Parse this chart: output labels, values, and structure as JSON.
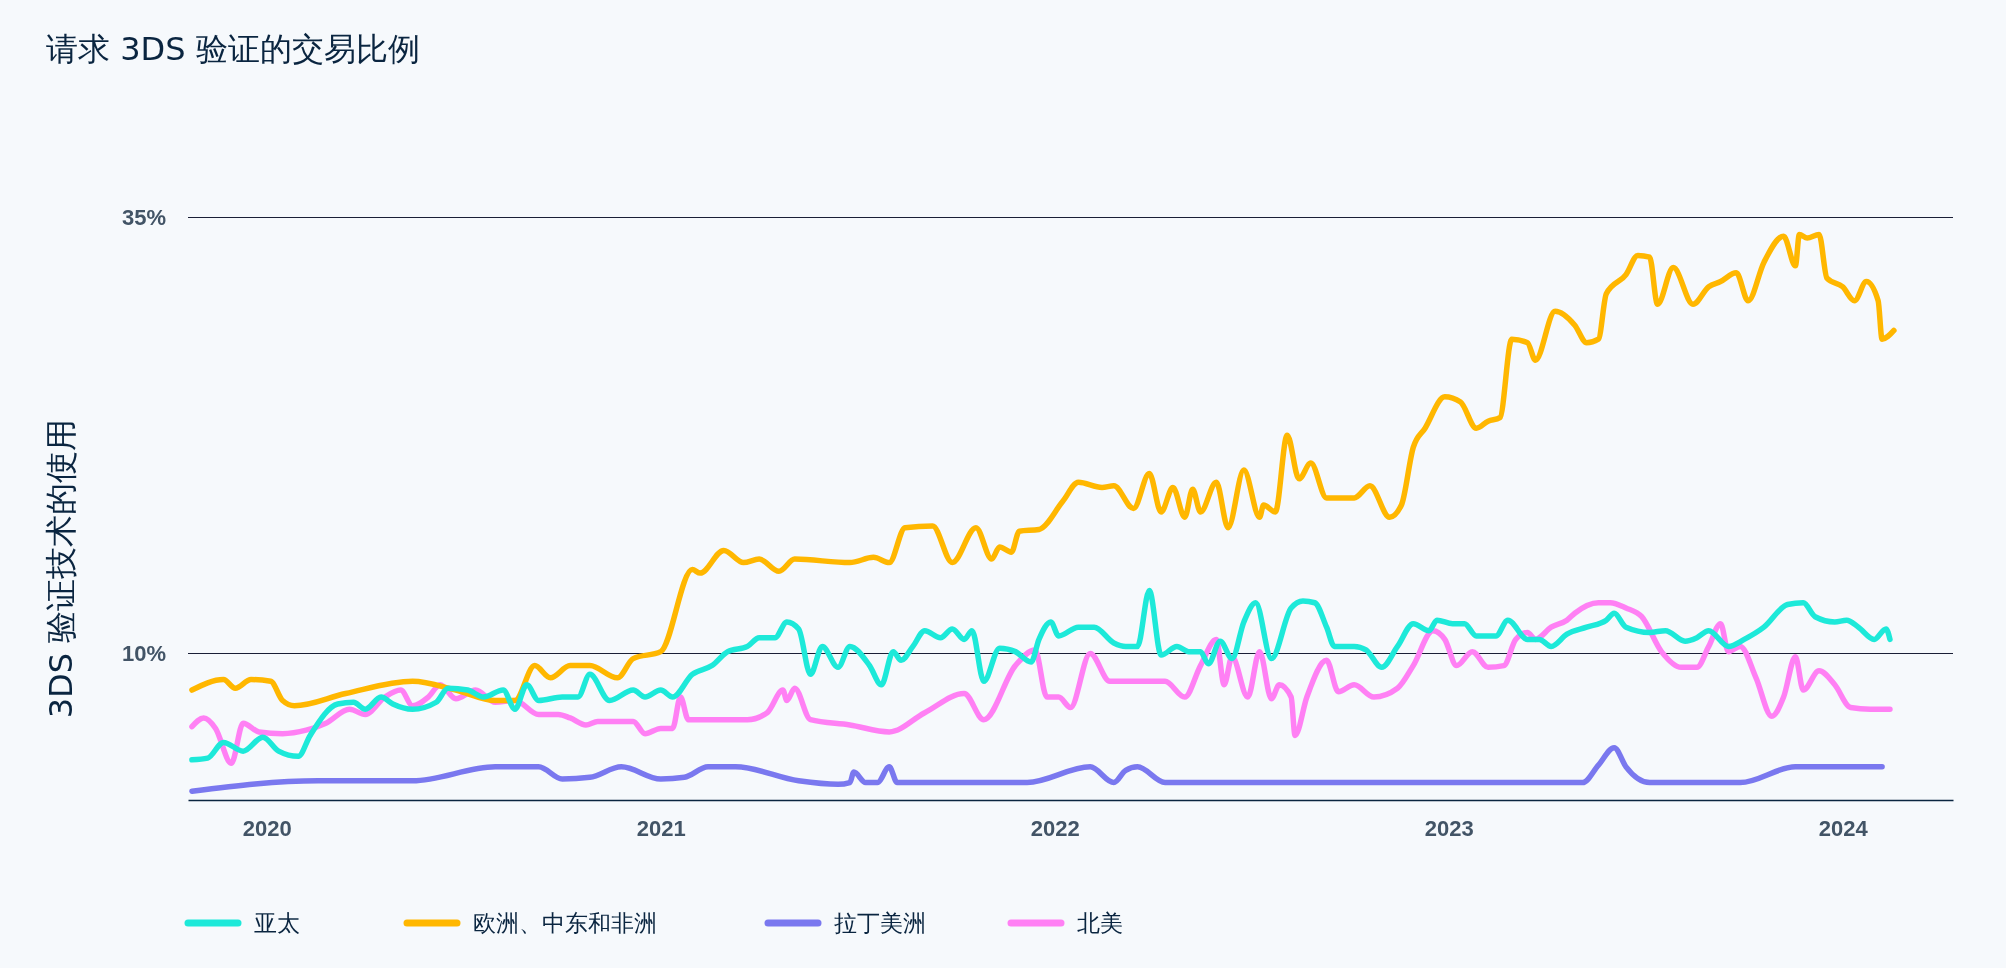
{
  "chart_data": {
    "type": "line",
    "title": "请求 3DS 验证的交易比例",
    "ylabel": "3DS 验证技术的使用",
    "xlim": [
      2019.8,
      2024.28
    ],
    "xticks": [
      2020,
      2021,
      2022,
      2023,
      2024
    ],
    "ylim": [
      1.6,
      35
    ],
    "yticks": [
      {
        "value": 10,
        "label": "10%"
      },
      {
        "value": 35,
        "label": "35%"
      }
    ],
    "grid": "y",
    "legend": "bottom left",
    "series": [
      {
        "name": "亚太",
        "color": "#1de9d9",
        "x": [
          2019.81,
          2019.85,
          2019.89,
          2019.94,
          2019.99,
          2020.03,
          2020.08,
          2020.11,
          2020.18,
          2020.22,
          2020.25,
          2020.29,
          2020.32,
          2020.37,
          2020.43,
          2020.46,
          2020.51,
          2020.55,
          2020.6,
          2020.63,
          2020.66,
          2020.69,
          2020.75,
          2020.79,
          2020.82,
          2020.87,
          2020.93,
          2020.96,
          2021.0,
          2021.03,
          2021.08,
          2021.13,
          2021.17,
          2021.22,
          2021.25,
          2021.29,
          2021.32,
          2021.35,
          2021.38,
          2021.41,
          2021.45,
          2021.48,
          2021.53,
          2021.56,
          2021.59,
          2021.61,
          2021.64,
          2021.67,
          2021.71,
          2021.74,
          2021.77,
          2021.79,
          2021.82,
          2021.86,
          2021.9,
          2021.94,
          2021.96,
          2021.99,
          2022.01,
          2022.06,
          2022.1,
          2022.15,
          2022.18,
          2022.21,
          2022.24,
          2022.27,
          2022.31,
          2022.34,
          2022.37,
          2022.39,
          2022.42,
          2022.45,
          2022.48,
          2022.51,
          2022.55,
          2022.6,
          2022.63,
          2022.66,
          2022.69,
          2022.71,
          2022.76,
          2022.79,
          2022.83,
          2022.87,
          2022.91,
          2022.95,
          2022.97,
          2023.01,
          2023.04,
          2023.07,
          2023.12,
          2023.15,
          2023.2,
          2023.23,
          2023.26,
          2023.3,
          2023.35,
          2023.4,
          2023.42,
          2023.45,
          2023.51,
          2023.55,
          2023.6,
          2023.63,
          2023.66,
          2023.71,
          2023.75,
          2023.8,
          2023.86,
          2023.9,
          2023.93,
          2023.98,
          2024.01,
          2024.04,
          2024.08,
          2024.11,
          2024.12
        ],
        "values": [
          3.9,
          4.0,
          4.9,
          4.4,
          5.2,
          4.4,
          4.1,
          5.3,
          7.1,
          7.2,
          6.8,
          7.5,
          7.1,
          6.8,
          7.2,
          8.0,
          7.9,
          7.5,
          7.9,
          6.8,
          8.2,
          7.3,
          7.5,
          7.5,
          8.8,
          7.3,
          7.9,
          7.5,
          7.9,
          7.5,
          8.8,
          9.3,
          10.1,
          10.4,
          10.9,
          10.9,
          11.8,
          11.4,
          8.8,
          10.4,
          9.2,
          10.4,
          9.3,
          8.2,
          10.1,
          9.6,
          10.4,
          11.3,
          10.9,
          11.4,
          10.8,
          11.3,
          8.4,
          10.3,
          10.1,
          9.5,
          10.8,
          11.8,
          11.0,
          11.5,
          11.5,
          10.6,
          10.4,
          10.4,
          13.6,
          9.9,
          10.4,
          10.1,
          10.1,
          9.4,
          10.7,
          9.7,
          11.8,
          12.9,
          9.7,
          12.6,
          13.0,
          12.9,
          11.5,
          10.4,
          10.4,
          10.2,
          9.2,
          10.4,
          11.7,
          11.3,
          11.9,
          11.7,
          11.7,
          11.0,
          11.0,
          11.9,
          10.8,
          10.8,
          10.4,
          11.1,
          11.5,
          11.9,
          12.3,
          11.5,
          11.2,
          11.3,
          10.7,
          10.9,
          11.3,
          10.4,
          10.8,
          11.5,
          12.8,
          12.9,
          12.1,
          11.8,
          11.9,
          11.5,
          10.8,
          11.4,
          10.8
        ]
      },
      {
        "name": "欧洲、中东和非洲",
        "color": "#ffb700",
        "x": [
          2019.81,
          2019.89,
          2019.92,
          2019.96,
          2020.01,
          2020.04,
          2020.07,
          2020.2,
          2020.37,
          2020.48,
          2020.58,
          2020.63,
          2020.68,
          2020.72,
          2020.77,
          2020.82,
          2020.89,
          2020.93,
          2021.0,
          2021.08,
          2021.1,
          2021.16,
          2021.21,
          2021.25,
          2021.3,
          2021.34,
          2021.48,
          2021.54,
          2021.58,
          2021.62,
          2021.69,
          2021.74,
          2021.8,
          2021.84,
          2021.86,
          2021.89,
          2021.91,
          2021.96,
          2022.02,
          2022.06,
          2022.12,
          2022.15,
          2022.2,
          2022.24,
          2022.27,
          2022.3,
          2022.33,
          2022.35,
          2022.37,
          2022.41,
          2022.44,
          2022.48,
          2022.52,
          2022.53,
          2022.56,
          2022.59,
          2022.62,
          2022.65,
          2022.69,
          2022.76,
          2022.8,
          2022.85,
          2022.88,
          2022.91,
          2022.94,
          2022.99,
          2023.03,
          2023.07,
          2023.1,
          2023.13,
          2023.16,
          2023.2,
          2023.22,
          2023.27,
          2023.32,
          2023.35,
          2023.38,
          2023.4,
          2023.45,
          2023.48,
          2023.51,
          2023.53,
          2023.57,
          2023.62,
          2023.66,
          2023.69,
          2023.73,
          2023.76,
          2023.8,
          2023.85,
          2023.88,
          2023.89,
          2023.91,
          2023.94,
          2023.96,
          2024.0,
          2024.03,
          2024.06,
          2024.09,
          2024.1,
          2024.13
        ],
        "values": [
          7.9,
          8.5,
          8.0,
          8.5,
          8.4,
          7.3,
          7.0,
          7.7,
          8.4,
          7.9,
          7.3,
          7.3,
          9.3,
          8.6,
          9.3,
          9.3,
          8.6,
          9.7,
          10.1,
          14.8,
          14.6,
          15.9,
          15.2,
          15.4,
          14.7,
          15.4,
          15.2,
          15.5,
          15.2,
          17.2,
          17.3,
          15.2,
          17.2,
          15.4,
          16.1,
          15.8,
          17.0,
          17.1,
          18.7,
          19.8,
          19.5,
          19.6,
          18.3,
          20.3,
          18.1,
          19.5,
          17.8,
          19.4,
          18.1,
          19.8,
          17.2,
          20.5,
          17.8,
          18.5,
          18.1,
          22.5,
          20.0,
          20.9,
          18.9,
          18.9,
          19.6,
          17.8,
          18.5,
          21.8,
          22.9,
          24.7,
          24.4,
          22.9,
          23.3,
          23.5,
          28.0,
          27.8,
          26.8,
          29.6,
          28.8,
          27.8,
          28.0,
          30.6,
          31.7,
          32.8,
          32.7,
          30.0,
          32.1,
          30.0,
          31.0,
          31.3,
          31.8,
          30.2,
          32.4,
          33.9,
          32.2,
          34.0,
          33.8,
          34.0,
          31.5,
          31.0,
          30.2,
          31.3,
          30.2,
          28.0,
          28.5
        ]
      },
      {
        "name": "拉丁美洲",
        "color": "#7a78ef",
        "x": [
          2019.81,
          2020.13,
          2020.37,
          2020.58,
          2020.69,
          2020.75,
          2020.82,
          2020.9,
          2021.0,
          2021.06,
          2021.12,
          2021.19,
          2021.35,
          2021.45,
          2021.48,
          2021.49,
          2021.52,
          2021.55,
          2021.58,
          2021.6,
          2021.93,
          2022.09,
          2022.15,
          2022.18,
          2022.21,
          2022.28,
          2023.34,
          2023.38,
          2023.42,
          2023.45,
          2023.51,
          2023.74,
          2023.88,
          2024.1
        ],
        "values": [
          2.1,
          2.7,
          2.7,
          3.5,
          3.5,
          2.8,
          2.9,
          3.5,
          2.8,
          2.9,
          3.5,
          3.5,
          2.7,
          2.5,
          2.6,
          3.2,
          2.6,
          2.6,
          3.5,
          2.6,
          2.6,
          3.5,
          2.6,
          3.3,
          3.5,
          2.6,
          2.6,
          3.6,
          4.6,
          3.5,
          2.6,
          2.6,
          3.5,
          3.5
        ]
      },
      {
        "name": "北美",
        "color": "#ff80f4",
        "x": [
          2019.81,
          2019.84,
          2019.87,
          2019.91,
          2019.94,
          2019.98,
          2020.04,
          2020.1,
          2020.15,
          2020.21,
          2020.25,
          2020.3,
          2020.34,
          2020.37,
          2020.41,
          2020.44,
          2020.48,
          2020.53,
          2020.58,
          2020.63,
          2020.69,
          2020.74,
          2020.77,
          2020.81,
          2020.84,
          2020.93,
          2020.96,
          2021.0,
          2021.03,
          2021.05,
          2021.07,
          2021.22,
          2021.27,
          2021.31,
          2021.32,
          2021.34,
          2021.38,
          2021.48,
          2021.58,
          2021.67,
          2021.77,
          2021.82,
          2021.9,
          2021.95,
          2021.98,
          2022.01,
          2022.04,
          2022.09,
          2022.14,
          2022.22,
          2022.28,
          2022.33,
          2022.37,
          2022.41,
          2022.43,
          2022.45,
          2022.49,
          2022.52,
          2022.55,
          2022.57,
          2022.6,
          2022.61,
          2022.64,
          2022.69,
          2022.72,
          2022.76,
          2022.81,
          2022.87,
          2022.91,
          2022.96,
          2022.99,
          2023.02,
          2023.06,
          2023.1,
          2023.14,
          2023.17,
          2023.2,
          2023.22,
          2023.26,
          2023.3,
          2023.32,
          2023.38,
          2023.41,
          2023.45,
          2023.49,
          2023.54,
          2023.59,
          2023.63,
          2023.66,
          2023.69,
          2023.71,
          2023.74,
          2023.78,
          2023.82,
          2023.85,
          2023.88,
          2023.9,
          2023.94,
          2023.98,
          2024.02,
          2024.07,
          2024.12
        ],
        "values": [
          5.8,
          6.3,
          5.7,
          3.7,
          6.0,
          5.5,
          5.4,
          5.6,
          6.0,
          6.8,
          6.5,
          7.5,
          7.9,
          7.0,
          7.5,
          8.2,
          7.4,
          7.9,
          7.2,
          7.3,
          6.5,
          6.5,
          6.3,
          5.9,
          6.1,
          6.1,
          5.4,
          5.7,
          5.7,
          7.5,
          6.2,
          6.2,
          6.6,
          7.9,
          7.3,
          8.0,
          6.2,
          5.9,
          5.5,
          6.6,
          7.7,
          6.2,
          9.3,
          10.2,
          7.5,
          7.5,
          6.9,
          10.0,
          8.4,
          8.4,
          8.4,
          7.5,
          9.3,
          10.8,
          8.2,
          9.8,
          7.5,
          10.1,
          7.4,
          8.2,
          7.5,
          5.3,
          7.5,
          9.6,
          7.8,
          8.2,
          7.5,
          8.0,
          9.3,
          11.3,
          10.8,
          9.3,
          10.1,
          9.2,
          9.3,
          10.8,
          11.2,
          10.8,
          11.5,
          11.9,
          12.3,
          12.9,
          12.9,
          12.6,
          12.1,
          10.1,
          9.2,
          9.2,
          10.4,
          11.7,
          10.1,
          10.4,
          8.6,
          6.4,
          7.5,
          9.8,
          7.9,
          9.0,
          8.2,
          6.9,
          6.8,
          6.8
        ]
      }
    ]
  }
}
